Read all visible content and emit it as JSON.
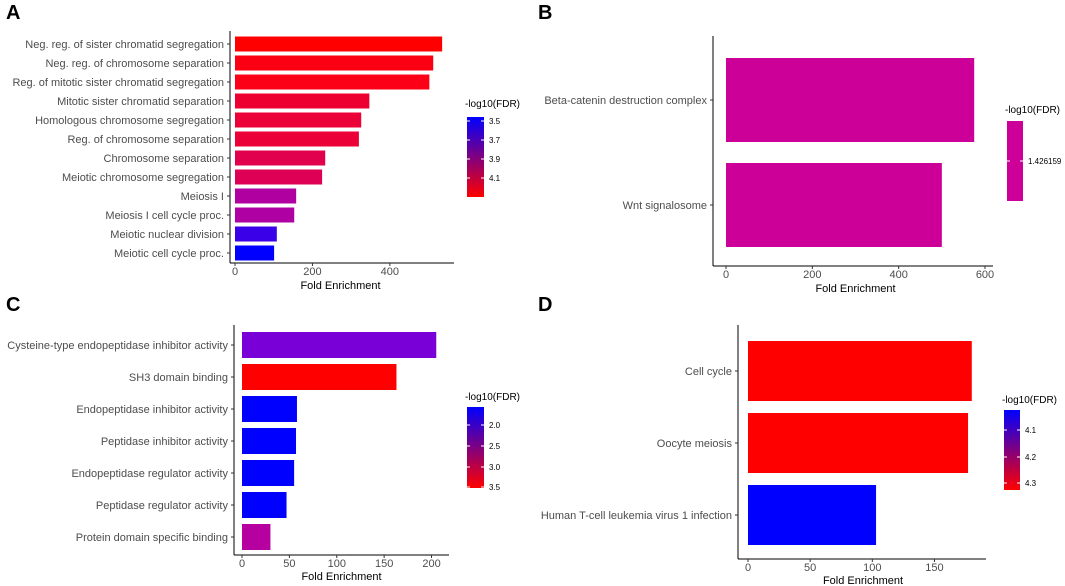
{
  "chart_data": [
    {
      "panel": "A",
      "type": "bar",
      "orientation": "horizontal",
      "xlabel": "Fold Enrichment",
      "xlim": [
        0,
        545
      ],
      "xticks": [
        0,
        200,
        400
      ],
      "legend": {
        "title": "-log10(FDR)",
        "ticks": [
          "3.5",
          "3.7",
          "3.9",
          "4.1"
        ]
      },
      "categories": [
        "Neg. reg. of sister chromatid segregation",
        "Neg. reg. of chromosome separation",
        "Reg. of mitotic sister chromatid segregation",
        "Mitotic sister chromatid separation",
        "Homologous chromosome segregation",
        "Reg. of chromosome separation",
        "Chromosome separation",
        "Meiotic chromosome segregation",
        "Meiosis I",
        "Meiosis I cell cycle proc.",
        "Meiotic nuclear division",
        "Meiotic cell cycle proc."
      ],
      "values": [
        535,
        512,
        502,
        347,
        326,
        320,
        233,
        225,
        158,
        153,
        108,
        101
      ],
      "colors": [
        "#ff0000",
        "#fb0012",
        "#fb0016",
        "#ed0031",
        "#ec0038",
        "#ec0038",
        "#e0004e",
        "#de0055",
        "#b000a0",
        "#ae00a3",
        "#3a00e8",
        "#0000ff"
      ]
    },
    {
      "panel": "B",
      "type": "bar",
      "orientation": "horizontal",
      "xlabel": "Fold Enrichment",
      "xlim": [
        0,
        600
      ],
      "xticks": [
        0,
        200,
        400,
        600
      ],
      "legend": {
        "title": "-log10(FDR)",
        "ticks": [
          "1.426159"
        ]
      },
      "categories": [
        "Beta-catenin destruction complex",
        "Wnt signalosome"
      ],
      "values": [
        575,
        500
      ],
      "colors": [
        "#cc0099",
        "#cc0099"
      ]
    },
    {
      "panel": "C",
      "type": "bar",
      "orientation": "horizontal",
      "xlabel": "Fold Enrichment",
      "xlim": [
        0,
        210
      ],
      "xticks": [
        0,
        50,
        100,
        150,
        200
      ],
      "legend": {
        "title": "-log10(FDR)",
        "ticks": [
          "2.0",
          "2.5",
          "3.0",
          "3.5"
        ]
      },
      "categories": [
        "Cysteine-type endopeptidase inhibitor activity",
        "SH3 domain binding",
        "Endopeptidase inhibitor activity",
        "Peptidase inhibitor activity",
        "Endopeptidase regulator activity",
        "Peptidase regulator activity",
        "Protein domain specific binding"
      ],
      "values": [
        205,
        163,
        58,
        57,
        55,
        47,
        30
      ],
      "colors": [
        "#7a00d8",
        "#ff0000",
        "#0000ff",
        "#0000ff",
        "#0000ff",
        "#0000ff",
        "#b6009f"
      ]
    },
    {
      "panel": "D",
      "type": "bar",
      "orientation": "horizontal",
      "xlabel": "Fold Enrichment",
      "xlim": [
        0,
        185
      ],
      "xticks": [
        0,
        50,
        100,
        150
      ],
      "legend": {
        "title": "-log10(FDR)",
        "ticks": [
          "4.1",
          "4.2",
          "4.3"
        ]
      },
      "categories": [
        "Cell cycle",
        "Oocyte meiosis",
        "Human T-cell leukemia virus 1 infection"
      ],
      "values": [
        180,
        177,
        103
      ],
      "colors": [
        "#ff0000",
        "#ff0000",
        "#0000ff"
      ]
    }
  ]
}
